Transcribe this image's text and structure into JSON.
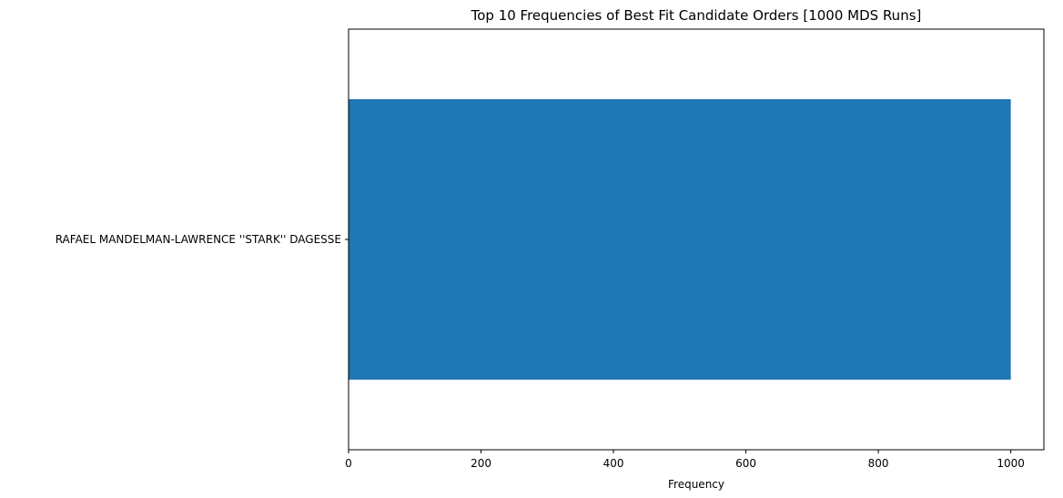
{
  "chart_data": {
    "type": "bar",
    "orientation": "horizontal",
    "title": "Top 10 Frequencies of Best Fit Candidate Orders [1000 MDS Runs]",
    "xlabel": "Frequency",
    "ylabel": "",
    "categories": [
      "RAFAEL MANDELMAN-LAWRENCE ''STARK'' DAGESSE"
    ],
    "values": [
      1000
    ],
    "xlim": [
      0,
      1050
    ],
    "xticks": [
      0,
      200,
      400,
      600,
      800,
      1000
    ],
    "bar_color": "#1f77b4",
    "grid": false,
    "legend": "none"
  }
}
